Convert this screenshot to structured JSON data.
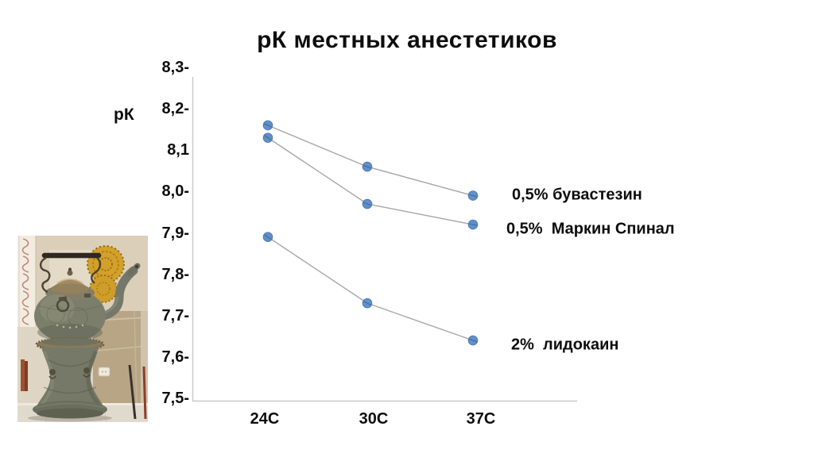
{
  "chart_data": {
    "type": "line",
    "title": "рК местных анестетиков",
    "ylabel": "рК",
    "xlabel": "",
    "categories": [
      "24C",
      "30C",
      "37C"
    ],
    "series": [
      {
        "name": "0,5% бувастезин",
        "values": [
          8.16,
          8.06,
          7.99
        ]
      },
      {
        "name": "0,5%  Маркин Спинал",
        "values": [
          8.13,
          7.97,
          7.92
        ]
      },
      {
        "name": "2%  лидокаин",
        "values": [
          7.89,
          7.73,
          7.64
        ]
      }
    ],
    "y_tick_labels": [
      "8,3-",
      "8,2-",
      "8,1",
      "8,0-",
      "7,9-",
      "7,8-",
      "7,7-",
      "7,6-",
      "7,5-"
    ],
    "y_tick_values": [
      8.3,
      8.2,
      8.1,
      8.0,
      7.9,
      7.8,
      7.7,
      7.6,
      7.5
    ],
    "ylim": [
      7.5,
      8.3
    ],
    "grid": false,
    "legend_position": "inline-right-of-last-point",
    "marker_color": "#6191cb",
    "marker_edge_color": "#4f7cb0",
    "marker_chord_color": "#48709f",
    "line_color": "#a6a6a6",
    "axis_color": "#c9c9c9",
    "text_color": "#0d0d0d"
  },
  "photo": {
    "description": "antique engraved metal kettle on a pedestal stand, gold filigree ornament behind, beige wall with floral wallpaper strip"
  }
}
